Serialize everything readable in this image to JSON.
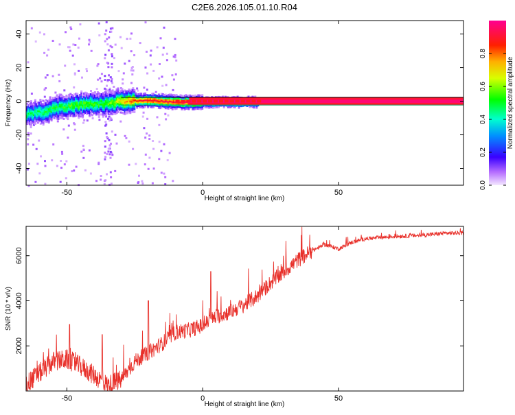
{
  "title": "C2E6.2026.105.01.10.R04",
  "chart_data": [
    {
      "type": "heatmap",
      "xlabel": "Height of straight line (km)",
      "ylabel": "Frequency (Hz)",
      "xlim": [
        -65,
        96
      ],
      "ylim": [
        -50,
        48
      ],
      "xticks": [
        -50,
        0,
        50
      ],
      "yticks": [
        -40,
        -20,
        0,
        20,
        40
      ],
      "colorbar": {
        "label": "Normalized spectral amplitude",
        "ticks": [
          0.0,
          0.2,
          0.4,
          0.6,
          0.8
        ],
        "range": [
          0,
          1
        ]
      },
      "ridge": [
        {
          "x": -63,
          "y": -7,
          "v": 0.45
        },
        {
          "x": -58,
          "y": -5,
          "v": 0.5
        },
        {
          "x": -53,
          "y": -3,
          "v": 0.5
        },
        {
          "x": -48,
          "y": -2,
          "v": 0.55
        },
        {
          "x": -43,
          "y": -1,
          "v": 0.55
        },
        {
          "x": -38,
          "y": -1,
          "v": 0.5
        },
        {
          "x": -33,
          "y": 0,
          "v": 0.6
        },
        {
          "x": -28,
          "y": 1,
          "v": 0.75
        },
        {
          "x": -23,
          "y": 1,
          "v": 0.85
        },
        {
          "x": -18,
          "y": 1,
          "v": 0.9
        },
        {
          "x": -10,
          "y": 0,
          "v": 0.92
        },
        {
          "x": 0,
          "y": 0,
          "v": 0.95
        },
        {
          "x": 10,
          "y": 0,
          "v": 0.95
        },
        {
          "x": 20,
          "y": 0,
          "v": 0.97
        },
        {
          "x": 95,
          "y": 0,
          "v": 0.97
        }
      ]
    },
    {
      "type": "line",
      "xlabel": "Height of straight line (km)",
      "ylabel": "SNR (10 * v/v)",
      "xlim": [
        -65,
        96
      ],
      "ylim": [
        0,
        7300
      ],
      "xticks": [
        -50,
        0,
        50
      ],
      "yticks": [
        2000,
        4000,
        6000
      ],
      "color": "#e8302a",
      "trend": [
        {
          "x": -65,
          "y": 300
        },
        {
          "x": -60,
          "y": 800
        },
        {
          "x": -55,
          "y": 1300
        },
        {
          "x": -50,
          "y": 1400
        },
        {
          "x": -45,
          "y": 1100
        },
        {
          "x": -40,
          "y": 700
        },
        {
          "x": -35,
          "y": 250
        },
        {
          "x": -30,
          "y": 500
        },
        {
          "x": -25,
          "y": 1300
        },
        {
          "x": -20,
          "y": 1700
        },
        {
          "x": -15,
          "y": 2100
        },
        {
          "x": -10,
          "y": 2600
        },
        {
          "x": -5,
          "y": 2700
        },
        {
          "x": 0,
          "y": 2900
        },
        {
          "x": 5,
          "y": 3300
        },
        {
          "x": 10,
          "y": 3500
        },
        {
          "x": 15,
          "y": 3800
        },
        {
          "x": 20,
          "y": 4200
        },
        {
          "x": 25,
          "y": 4800
        },
        {
          "x": 30,
          "y": 5300
        },
        {
          "x": 35,
          "y": 5800
        },
        {
          "x": 40,
          "y": 6200
        },
        {
          "x": 45,
          "y": 6500
        },
        {
          "x": 50,
          "y": 6300
        },
        {
          "x": 55,
          "y": 6600
        },
        {
          "x": 60,
          "y": 6750
        },
        {
          "x": 70,
          "y": 6850
        },
        {
          "x": 80,
          "y": 6900
        },
        {
          "x": 90,
          "y": 7000
        },
        {
          "x": 96,
          "y": 7000
        }
      ],
      "peaks": [
        {
          "x": -49,
          "y": 2950
        },
        {
          "x": -37,
          "y": 2500
        },
        {
          "x": -20,
          "y": 4000
        },
        {
          "x": 3,
          "y": 5300
        }
      ]
    }
  ]
}
